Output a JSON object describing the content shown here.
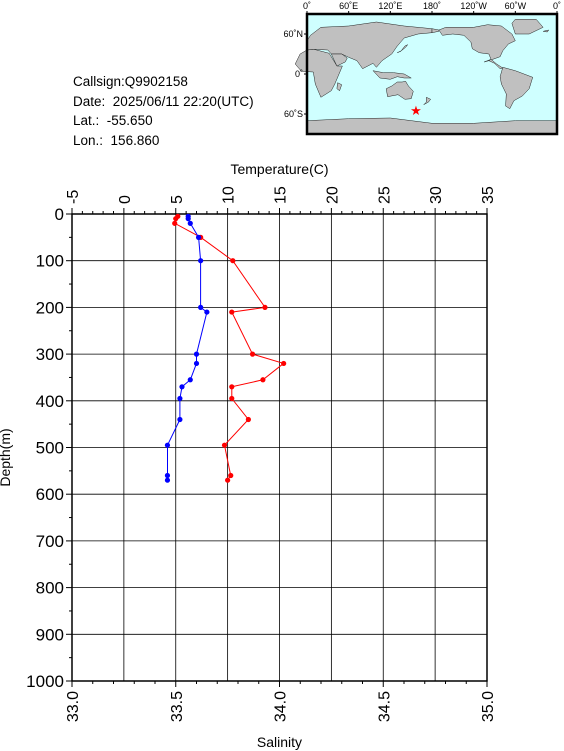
{
  "info": {
    "callsign_label": "Callsign:",
    "callsign": "Q9902158",
    "date_label": "Date:",
    "date": "2025/06/11 22:20(UTC)",
    "lat_label": "Lat.:",
    "lat": "-55.650",
    "lon_label": "Lon.:",
    "lon": "156.860"
  },
  "map": {
    "top_ticks": [
      "0˚",
      "60˚E",
      "120˚E",
      "180˚",
      "120˚W",
      "60˚W",
      "0˚"
    ],
    "lat_ticks": [
      "60˚N",
      "0˚",
      "60˚S"
    ],
    "ocean_color": "#cfffff",
    "land_color": "#c0c0c0",
    "marker": {
      "lon": 156.86,
      "lat": -55.65,
      "symbol": "★",
      "color": "#ff0000"
    }
  },
  "chart_data": {
    "type": "line",
    "top_axis": {
      "label": "Temperature(C)",
      "range": [
        -5,
        35
      ],
      "ticks": [
        "-5",
        "0",
        "5",
        "10",
        "15",
        "20",
        "25",
        "30",
        "35"
      ]
    },
    "bottom_axis": {
      "label": "Salinity",
      "range": [
        33.0,
        35.0
      ],
      "ticks": [
        "33.0",
        "33.5",
        "34.0",
        "34.5",
        "35.0"
      ]
    },
    "y_axis": {
      "label": "Depth(m)",
      "range": [
        0,
        1000
      ],
      "inverted": true,
      "ticks": [
        "0",
        "100",
        "200",
        "300",
        "400",
        "500",
        "600",
        "700",
        "800",
        "900",
        "1000"
      ]
    },
    "grid": true,
    "series": [
      {
        "axis": "top",
        "color": "#ff0000",
        "points": [
          [
            5.2,
            5
          ],
          [
            5.0,
            10
          ],
          [
            4.9,
            20
          ],
          [
            7.4,
            50
          ],
          [
            10.5,
            100
          ],
          [
            13.6,
            200
          ],
          [
            10.4,
            210
          ],
          [
            12.4,
            300
          ],
          [
            15.4,
            320
          ],
          [
            13.4,
            355
          ],
          [
            10.4,
            370
          ],
          [
            10.4,
            395
          ],
          [
            12.0,
            440
          ],
          [
            9.7,
            495
          ],
          [
            10.3,
            560
          ],
          [
            10.0,
            570
          ]
        ]
      },
      {
        "axis": "bottom",
        "color": "#0000ff",
        "points": [
          [
            33.56,
            5
          ],
          [
            33.56,
            10
          ],
          [
            33.57,
            20
          ],
          [
            33.61,
            50
          ],
          [
            33.62,
            100
          ],
          [
            33.62,
            200
          ],
          [
            33.65,
            210
          ],
          [
            33.6,
            300
          ],
          [
            33.6,
            320
          ],
          [
            33.57,
            355
          ],
          [
            33.53,
            370
          ],
          [
            33.52,
            395
          ],
          [
            33.52,
            440
          ],
          [
            33.46,
            495
          ],
          [
            33.46,
            560
          ],
          [
            33.46,
            570
          ]
        ]
      }
    ]
  }
}
